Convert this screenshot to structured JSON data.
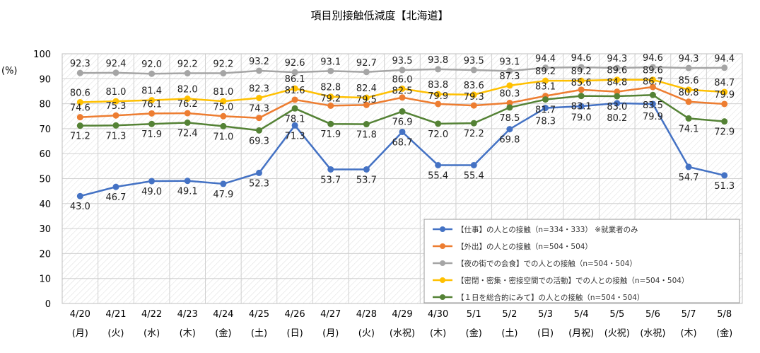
{
  "chart_data": {
    "type": "line",
    "title": "項目別接触低減度【北海道】",
    "ylabel": "(%)",
    "ylim": [
      0,
      100
    ],
    "yticks": [
      0,
      10,
      20,
      30,
      40,
      50,
      60,
      70,
      80,
      90,
      100
    ],
    "grid": true,
    "legend_position": "bottom-right",
    "categories": [
      "4/20",
      "4/21",
      "4/22",
      "4/23",
      "4/24",
      "4/25",
      "4/26",
      "4/27",
      "4/28",
      "4/29",
      "4/30",
      "5/1",
      "5/2",
      "5/3",
      "5/4",
      "5/5",
      "5/6",
      "5/7",
      "5/8"
    ],
    "weekdays": [
      "(月)",
      "(火)",
      "(水)",
      "(木)",
      "(金)",
      "(土)",
      "(日)",
      "(月)",
      "(火)",
      "(水祝)",
      "(木)",
      "(金)",
      "(土)",
      "(日)",
      "(月祝)",
      "(火祝)",
      "(水祝)",
      "(木)",
      "(金)"
    ],
    "series": [
      {
        "name": "【仕事】の人との接触（n=334・333） ※就業者のみ",
        "color": "#4472C4",
        "label_pos": "below",
        "values": [
          43.0,
          46.7,
          49.0,
          49.1,
          47.9,
          52.3,
          71.3,
          53.7,
          53.7,
          68.7,
          55.4,
          55.4,
          69.8,
          78.3,
          79.0,
          80.2,
          79.9,
          54.7,
          51.3
        ]
      },
      {
        "name": "【外出】の人との接触（n=504・504）",
        "color": "#ED7D31",
        "label_pos": "above",
        "values": [
          74.6,
          75.3,
          76.1,
          76.2,
          75.0,
          74.3,
          81.6,
          79.2,
          79.5,
          82.5,
          79.9,
          79.3,
          80.3,
          83.1,
          85.6,
          84.8,
          86.7,
          80.8,
          79.9
        ]
      },
      {
        "name": "【夜の街での会食】での人との接触（n=504・504）",
        "color": "#A5A5A5",
        "label_pos": "above",
        "values": [
          92.3,
          92.4,
          92.0,
          92.2,
          92.2,
          93.2,
          92.6,
          93.1,
          92.7,
          93.5,
          93.8,
          93.5,
          93.1,
          94.4,
          94.6,
          94.3,
          94.6,
          94.3,
          94.4
        ]
      },
      {
        "name": "【密閉・密集・密接空間での活動】での人との接触（n=504・504）",
        "color": "#FFC000",
        "label_pos": "above",
        "values": [
          80.6,
          81.0,
          81.4,
          82.0,
          81.0,
          82.3,
          86.1,
          82.8,
          82.4,
          86.0,
          83.8,
          83.6,
          87.3,
          89.2,
          89.2,
          89.6,
          89.6,
          85.6,
          84.7
        ]
      },
      {
        "name": "【１日を総合的にみて】の人との接触（n=504・504）",
        "color": "#548235",
        "label_pos": "below",
        "values": [
          71.2,
          71.3,
          71.9,
          72.4,
          71.0,
          69.3,
          78.1,
          71.9,
          71.8,
          76.9,
          72.0,
          72.2,
          78.5,
          81.7,
          83.1,
          83.0,
          83.5,
          74.1,
          72.9
        ]
      }
    ]
  }
}
